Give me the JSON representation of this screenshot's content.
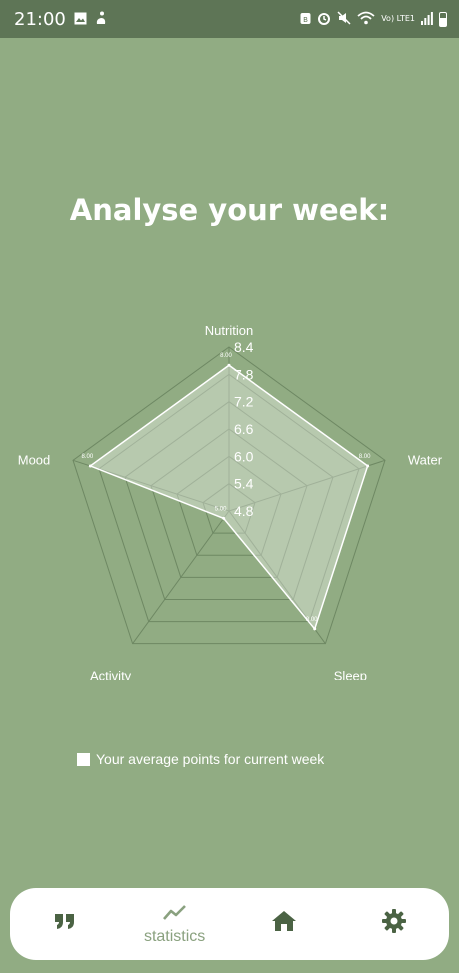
{
  "status_bar": {
    "time": "21:00",
    "lte": "Vo) LTE1",
    "left_icons": [
      "image-icon",
      "fitness-icon"
    ],
    "right_icons": [
      "work-profile-icon",
      "alarm-icon",
      "mute-icon",
      "wifi-icon",
      "lte-icon",
      "signal-icon",
      "battery-icon"
    ]
  },
  "page": {
    "title": "Analyse your week:"
  },
  "chart_data": {
    "type": "radar",
    "axes": [
      "Nutrition",
      "Water",
      "Sleep",
      "Activity",
      "Mood"
    ],
    "series": [
      {
        "name": "Your average points for current week",
        "values": [
          8.0,
          8.0,
          8.0,
          5.0,
          8.0
        ]
      }
    ],
    "value_labels": [
      "8.00",
      "8.00",
      "8.00",
      "5.00",
      "8.00"
    ],
    "ticks": [
      4.8,
      5.4,
      6.0,
      6.6,
      7.2,
      7.8,
      8.4
    ],
    "tick_labels": [
      "4.8",
      "5.4",
      "6.0",
      "6.6",
      "7.2",
      "7.8",
      "8.4"
    ],
    "range": [
      4.8,
      8.4
    ],
    "grid": true,
    "legend_position": "bottom-left"
  },
  "legend": {
    "label": "Your average points for current week"
  },
  "nav": {
    "items": [
      {
        "icon": "quote-icon",
        "label": ""
      },
      {
        "icon": "trending-up-icon",
        "label": "statistics",
        "active": true
      },
      {
        "icon": "home-icon",
        "label": ""
      },
      {
        "icon": "settings-icon",
        "label": ""
      }
    ]
  },
  "colors": {
    "background": "#91ac83",
    "status_bar": "#5e7556",
    "nav_active": "#8aa17f",
    "nav_icon": "#4b6344"
  }
}
